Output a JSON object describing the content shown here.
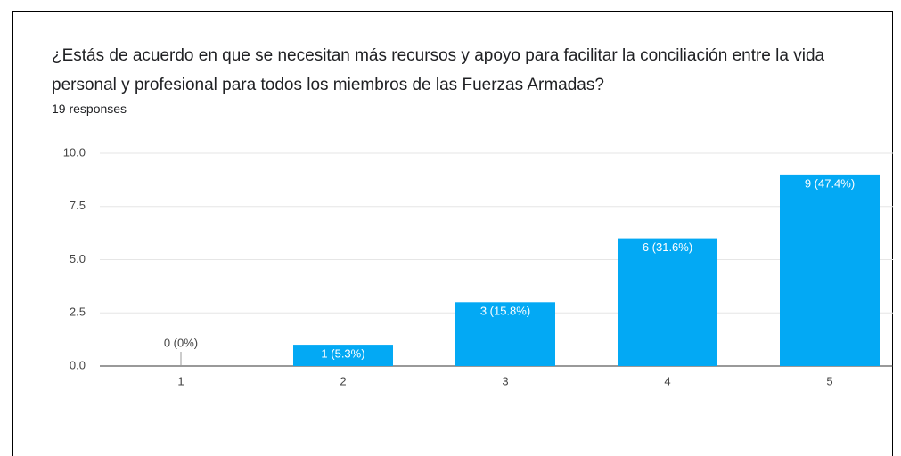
{
  "chart_data": {
    "type": "bar",
    "title": "¿Estás de acuerdo en que se necesitan más recursos y apoyo para facilitar la conciliación entre la vida personal y profesional para todos los miembros de las Fuerzas Armadas?",
    "subtitle": "19 responses",
    "categories": [
      "1",
      "2",
      "3",
      "4",
      "5"
    ],
    "values": [
      0,
      1,
      3,
      6,
      9
    ],
    "value_labels": [
      "0 (0%)",
      "1 (5.3%)",
      "3 (15.8%)",
      "6 (31.6%)",
      "9 (47.4%)"
    ],
    "color": "#03a9f4",
    "ylim": [
      0,
      10
    ],
    "yticks": [
      {
        "value": 0,
        "label": "0.0"
      },
      2.5,
      {
        "value": 5,
        "label": "5.0"
      },
      7.5,
      {
        "value": 10,
        "label": "10.0"
      }
    ],
    "grid": true
  }
}
